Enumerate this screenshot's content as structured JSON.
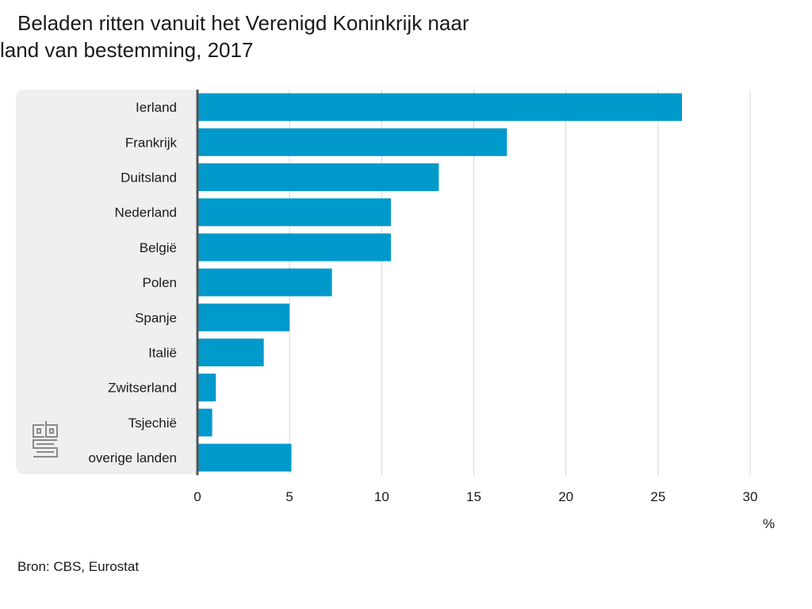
{
  "title_line1": "Beladen ritten vanuit het Verenigd Koninkrijk naar",
  "title_line2": "land van bestemming, 2017",
  "unit_label": "%",
  "source": "Bron: CBS, Eurostat",
  "bar_color": "#0099cc",
  "logo": "cbs-logo-icon",
  "chart_data": {
    "type": "bar",
    "orientation": "horizontal",
    "categories": [
      "Ierland",
      "Frankrijk",
      "Duitsland",
      "Nederland",
      "België",
      "Polen",
      "Spanje",
      "Italië",
      "Zwitserland",
      "Tsjechië",
      "overige landen"
    ],
    "values": [
      26.3,
      16.8,
      13.1,
      10.5,
      10.5,
      7.3,
      5.0,
      3.6,
      1.0,
      0.8,
      5.1
    ],
    "xlim": [
      0,
      30
    ],
    "xticks": [
      0,
      5,
      10,
      15,
      20,
      25,
      30
    ],
    "xlabel": "%",
    "grid": true
  }
}
